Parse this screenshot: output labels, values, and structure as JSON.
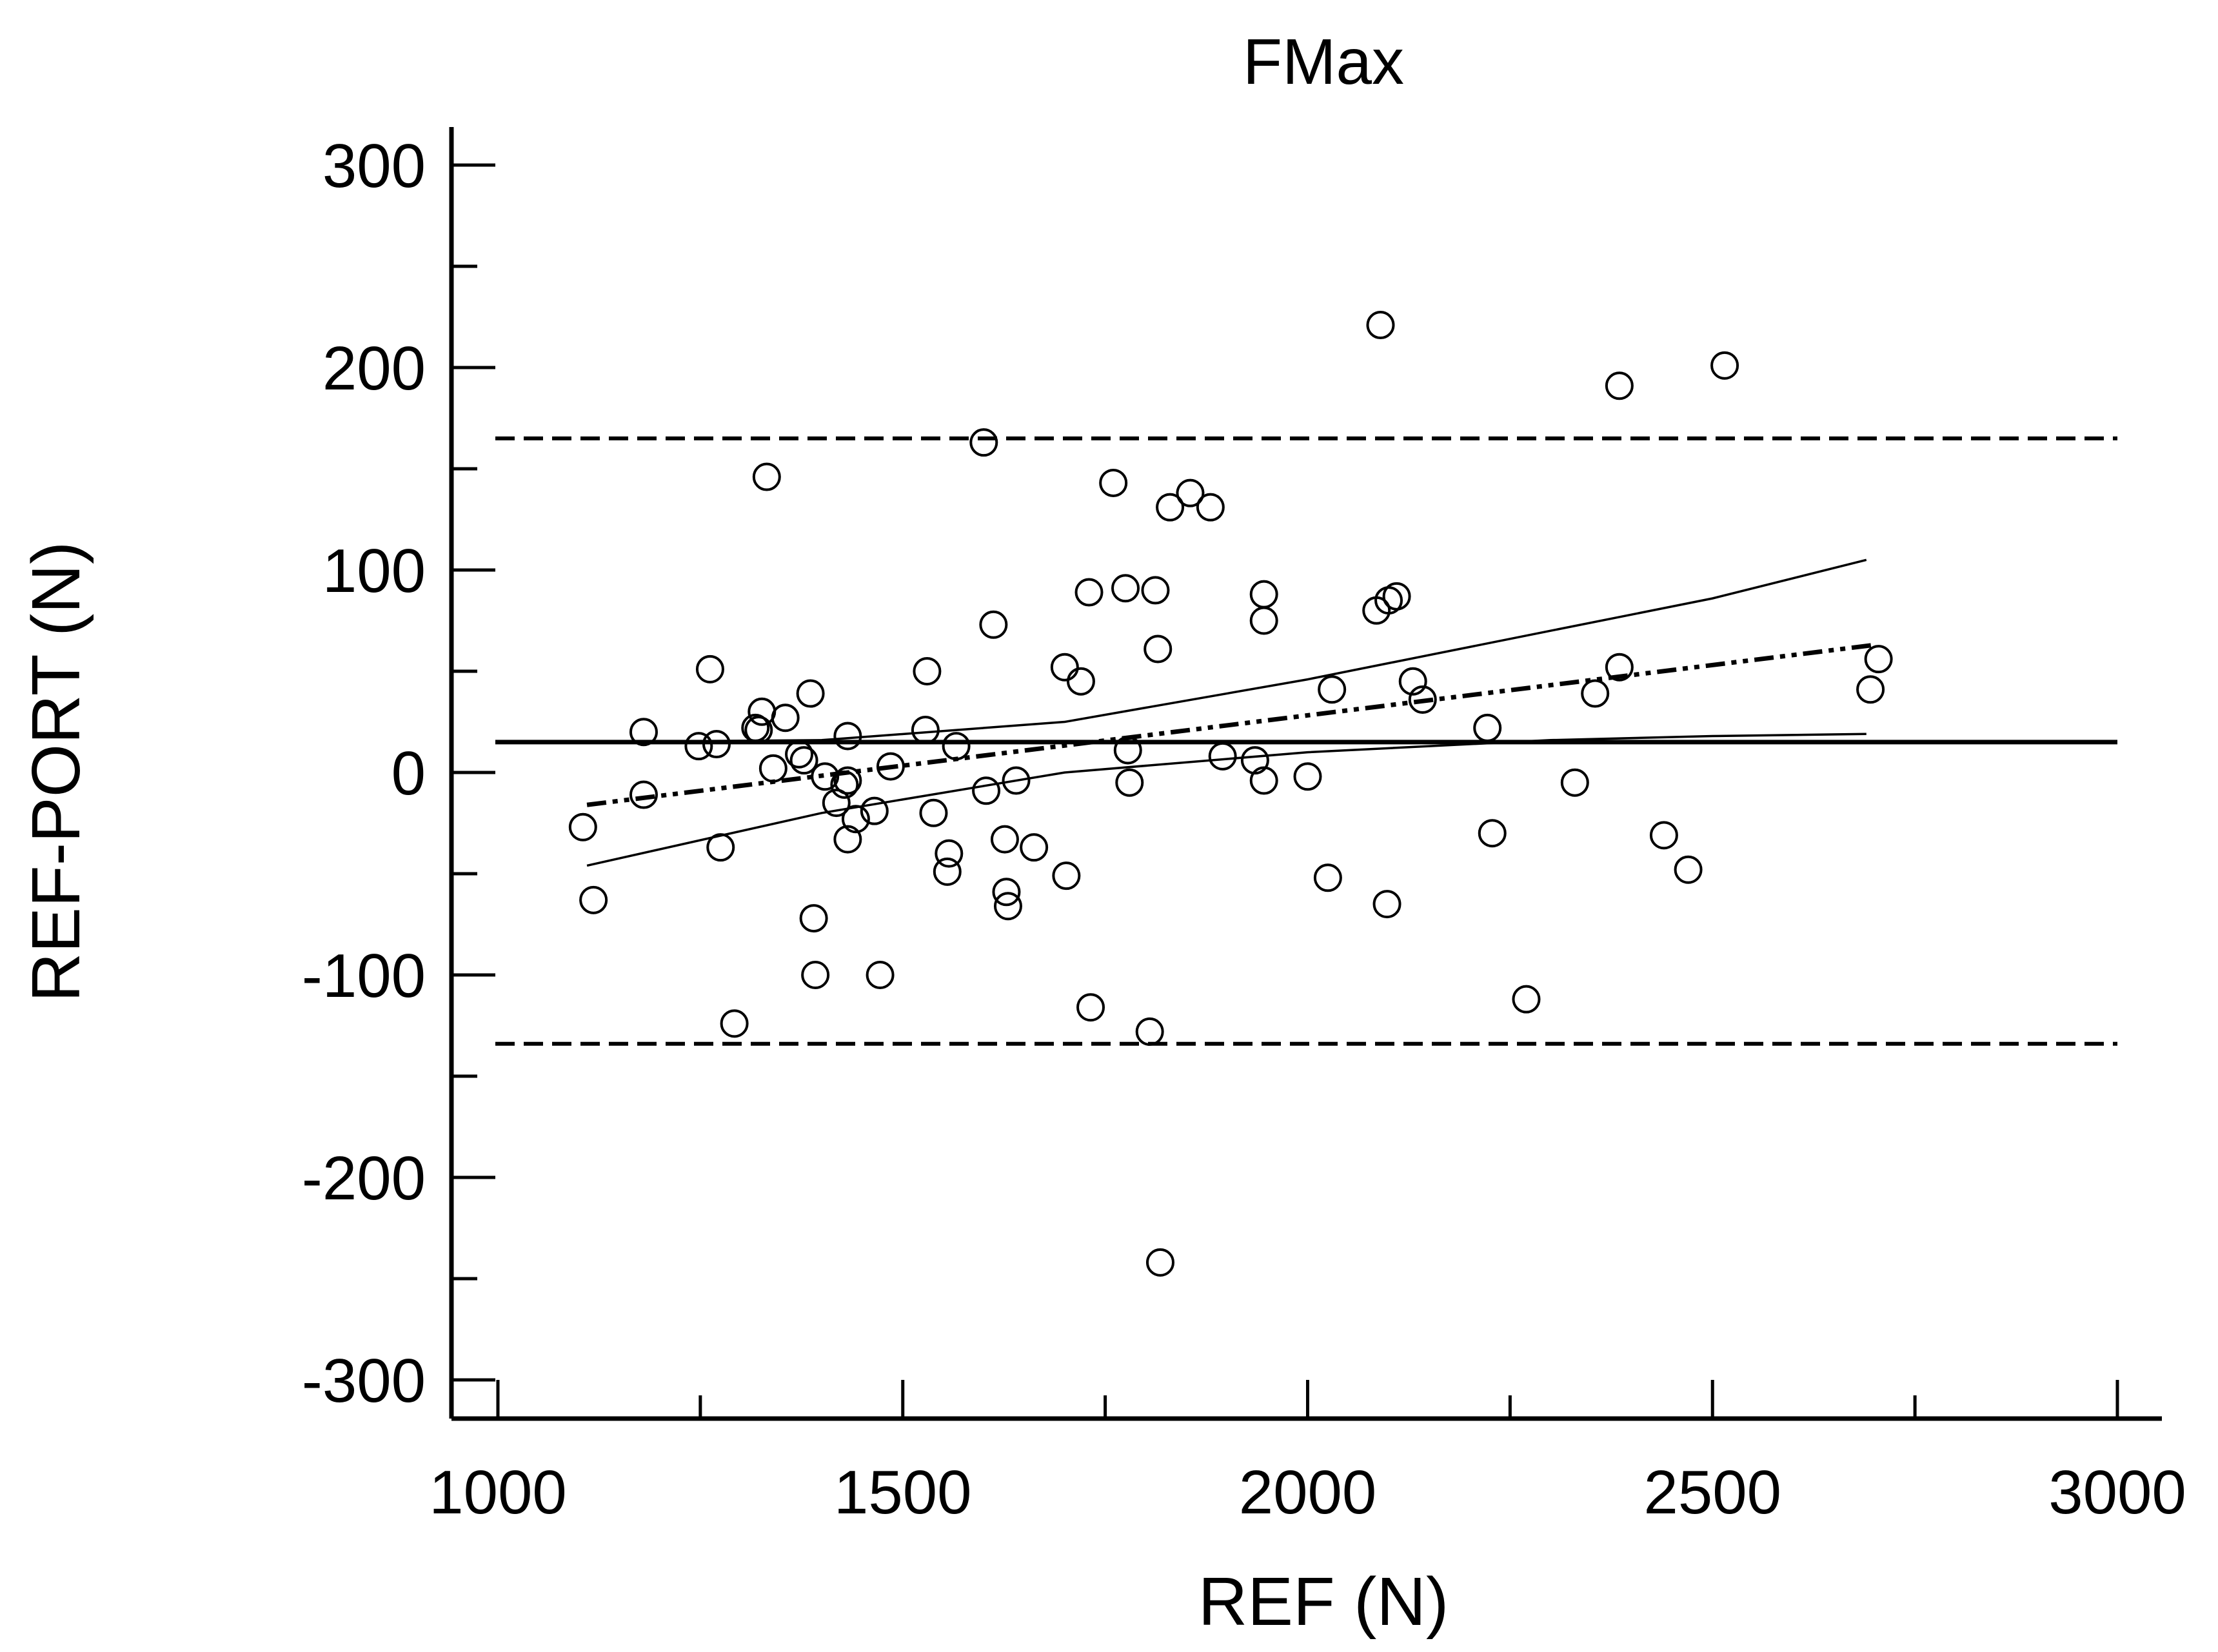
{
  "chart_data": {
    "type": "scatter",
    "title": "FMax",
    "xlabel": "REF (N)",
    "ylabel": "REF-PORT (N)",
    "xlim": [
      950,
      3050
    ],
    "ylim": [
      -320,
      320
    ],
    "xticks": [
      1000,
      1500,
      2000,
      2500,
      3000
    ],
    "xtick_labels": [
      "1000",
      "1500",
      "2000",
      "2500",
      "3000"
    ],
    "yticks": [
      300,
      200,
      100,
      0,
      -100,
      -200,
      -300
    ],
    "ytick_labels": [
      "300",
      "200",
      "100",
      "0",
      "-100",
      "-200",
      "-300"
    ],
    "grid": false,
    "legend": false,
    "reference_lines": [
      {
        "kind": "mean-difference",
        "y": 15,
        "style": "solid"
      },
      {
        "kind": "upper-limit-of-agreement",
        "y": 165,
        "style": "dashed"
      },
      {
        "kind": "lower-limit-of-agreement",
        "y": -134,
        "style": "dashed"
      }
    ],
    "regression_line": {
      "x": [
        1110,
        2700
      ],
      "y": [
        -16,
        63
      ],
      "style": "dash-dot-dot"
    },
    "confidence_band": {
      "upper": {
        "x": [
          1110,
          1400,
          1700,
          2000,
          2300,
          2500,
          2690
        ],
        "y": [
          15,
          16,
          25,
          46,
          70,
          86,
          105
        ]
      },
      "lower": {
        "x": [
          1110,
          1400,
          1700,
          2000,
          2300,
          2500,
          2690
        ],
        "y": [
          -46,
          -20,
          0,
          10,
          16,
          18,
          19
        ]
      }
    },
    "points": [
      {
        "x": 1105,
        "y": -27
      },
      {
        "x": 1118,
        "y": -63
      },
      {
        "x": 1180,
        "y": 20
      },
      {
        "x": 1180,
        "y": -11
      },
      {
        "x": 1248,
        "y": 13
      },
      {
        "x": 1262,
        "y": 51
      },
      {
        "x": 1270,
        "y": 14
      },
      {
        "x": 1275,
        "y": -37
      },
      {
        "x": 1292,
        "y": -124
      },
      {
        "x": 1318,
        "y": 22
      },
      {
        "x": 1322,
        "y": 21
      },
      {
        "x": 1326,
        "y": 30
      },
      {
        "x": 1332,
        "y": 146
      },
      {
        "x": 1340,
        "y": 2
      },
      {
        "x": 1355,
        "y": 27
      },
      {
        "x": 1372,
        "y": 9
      },
      {
        "x": 1378,
        "y": 6
      },
      {
        "x": 1386,
        "y": 39
      },
      {
        "x": 1390,
        "y": -72
      },
      {
        "x": 1392,
        "y": -100
      },
      {
        "x": 1404,
        "y": -2
      },
      {
        "x": 1418,
        "y": -15
      },
      {
        "x": 1428,
        "y": -6
      },
      {
        "x": 1432,
        "y": -4
      },
      {
        "x": 1432,
        "y": 18
      },
      {
        "x": 1432,
        "y": -33
      },
      {
        "x": 1442,
        "y": -23
      },
      {
        "x": 1465,
        "y": -19
      },
      {
        "x": 1472,
        "y": -100
      },
      {
        "x": 1485,
        "y": 3
      },
      {
        "x": 1528,
        "y": 21
      },
      {
        "x": 1530,
        "y": 50
      },
      {
        "x": 1538,
        "y": -20
      },
      {
        "x": 1555,
        "y": -49
      },
      {
        "x": 1557,
        "y": -40
      },
      {
        "x": 1566,
        "y": 13
      },
      {
        "x": 1600,
        "y": 163
      },
      {
        "x": 1603,
        "y": -9
      },
      {
        "x": 1612,
        "y": 73
      },
      {
        "x": 1626,
        "y": -33
      },
      {
        "x": 1628,
        "y": -59
      },
      {
        "x": 1630,
        "y": -66
      },
      {
        "x": 1640,
        "y": -4
      },
      {
        "x": 1662,
        "y": -37
      },
      {
        "x": 1700,
        "y": 52
      },
      {
        "x": 1702,
        "y": -51
      },
      {
        "x": 1720,
        "y": 45
      },
      {
        "x": 1730,
        "y": 89
      },
      {
        "x": 1732,
        "y": -116
      },
      {
        "x": 1760,
        "y": 143
      },
      {
        "x": 1775,
        "y": 91
      },
      {
        "x": 1778,
        "y": 11
      },
      {
        "x": 1780,
        "y": -5
      },
      {
        "x": 1805,
        "y": -128
      },
      {
        "x": 1812,
        "y": 90
      },
      {
        "x": 1815,
        "y": 61
      },
      {
        "x": 1818,
        "y": -242
      },
      {
        "x": 1830,
        "y": 131
      },
      {
        "x": 1855,
        "y": 138
      },
      {
        "x": 1880,
        "y": 131
      },
      {
        "x": 1895,
        "y": 8
      },
      {
        "x": 1935,
        "y": 6
      },
      {
        "x": 1946,
        "y": 88
      },
      {
        "x": 1946,
        "y": 75
      },
      {
        "x": 1946,
        "y": -4
      },
      {
        "x": 2000,
        "y": -2
      },
      {
        "x": 2025,
        "y": -52
      },
      {
        "x": 2030,
        "y": 41
      },
      {
        "x": 2085,
        "y": 80
      },
      {
        "x": 2090,
        "y": 221
      },
      {
        "x": 2098,
        "y": -65
      },
      {
        "x": 2100,
        "y": 85
      },
      {
        "x": 2110,
        "y": 87
      },
      {
        "x": 2130,
        "y": 45
      },
      {
        "x": 2142,
        "y": 36
      },
      {
        "x": 2222,
        "y": 22
      },
      {
        "x": 2228,
        "y": -30
      },
      {
        "x": 2270,
        "y": -112
      },
      {
        "x": 2330,
        "y": -5
      },
      {
        "x": 2355,
        "y": 39
      },
      {
        "x": 2385,
        "y": 52
      },
      {
        "x": 2385,
        "y": 191
      },
      {
        "x": 2440,
        "y": -31
      },
      {
        "x": 2470,
        "y": -48
      },
      {
        "x": 2515,
        "y": 201
      },
      {
        "x": 2695,
        "y": 41
      },
      {
        "x": 2705,
        "y": 56
      }
    ]
  }
}
